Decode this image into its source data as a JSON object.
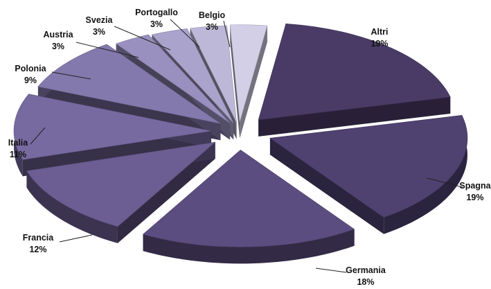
{
  "chart_data": {
    "type": "pie",
    "variant": "3d-exploded",
    "title": "",
    "slices": [
      {
        "label": "Altri",
        "value_label": "19%",
        "value": 19,
        "color": "#4a3b66"
      },
      {
        "label": "Spagna",
        "value_label": "19%",
        "value": 19,
        "color": "#4f4170"
      },
      {
        "label": "Germania",
        "value_label": "18%",
        "value": 18,
        "color": "#5c4d80"
      },
      {
        "label": "Francia",
        "value_label": "12%",
        "value": 12,
        "color": "#6c5d92"
      },
      {
        "label": "Italia",
        "value_label": "11%",
        "value": 11,
        "color": "#776aa0"
      },
      {
        "label": "Polonia",
        "value_label": "9%",
        "value": 9,
        "color": "#8479ad"
      },
      {
        "label": "Austria",
        "value_label": "3%",
        "value": 3,
        "color": "#9990bf"
      },
      {
        "label": "Svezia",
        "value_label": "3%",
        "value": 3,
        "color": "#aaa3cb"
      },
      {
        "label": "Portogallo",
        "value_label": "3%",
        "value": 3,
        "color": "#bdb7d8"
      },
      {
        "label": "Belgio",
        "value_label": "3%",
        "value": 3,
        "color": "#d3cfe6"
      }
    ]
  }
}
